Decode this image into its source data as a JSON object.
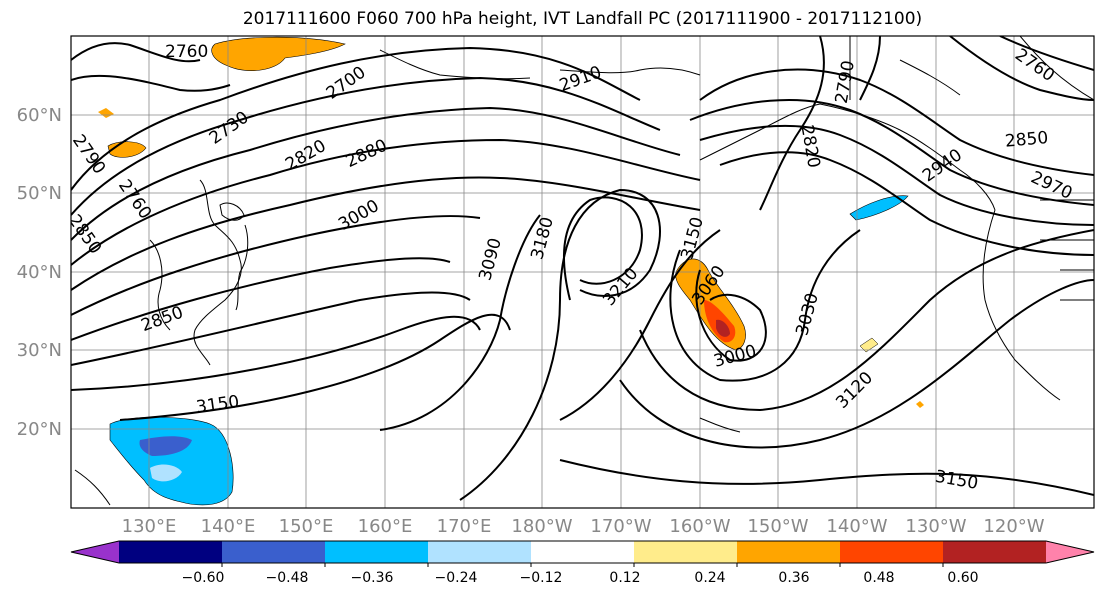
{
  "title": "2017111600 F060 700 hPa height, IVT Landfall PC (2017111900 - 2017112100)",
  "lat_labels": [
    "60°N",
    "50°N",
    "40°N",
    "30°N",
    "20°N"
  ],
  "lon_labels": [
    "130°E",
    "140°E",
    "150°E",
    "160°E",
    "170°E",
    "180°W",
    "170°W",
    "160°W",
    "150°W",
    "140°W",
    "130°W",
    "120°W"
  ],
  "contour_labels": [
    "2760",
    "2700",
    "2730",
    "2820",
    "2880",
    "3000",
    "2790",
    "2760",
    "2850",
    "3090",
    "3180",
    "3210",
    "3150",
    "3060",
    "3030",
    "3000",
    "2910",
    "2820",
    "2790",
    "2850",
    "2970",
    "2940",
    "3150",
    "3120",
    "3150",
    "2850",
    "2760"
  ],
  "colorbar": {
    "colors": [
      "#9932cc",
      "#000080",
      "#3a5fcd",
      "#00bfff",
      "#b0e2ff",
      "#ffffff",
      "#ffec8b",
      "#ffa500",
      "#ff4500",
      "#b22222",
      "#ff82ab"
    ],
    "tick_labels": [
      "−0.60",
      "−0.48",
      "−0.36",
      "−0.24",
      "−0.12",
      "0.12",
      "0.24",
      "0.36",
      "0.48",
      "0.60"
    ]
  }
}
